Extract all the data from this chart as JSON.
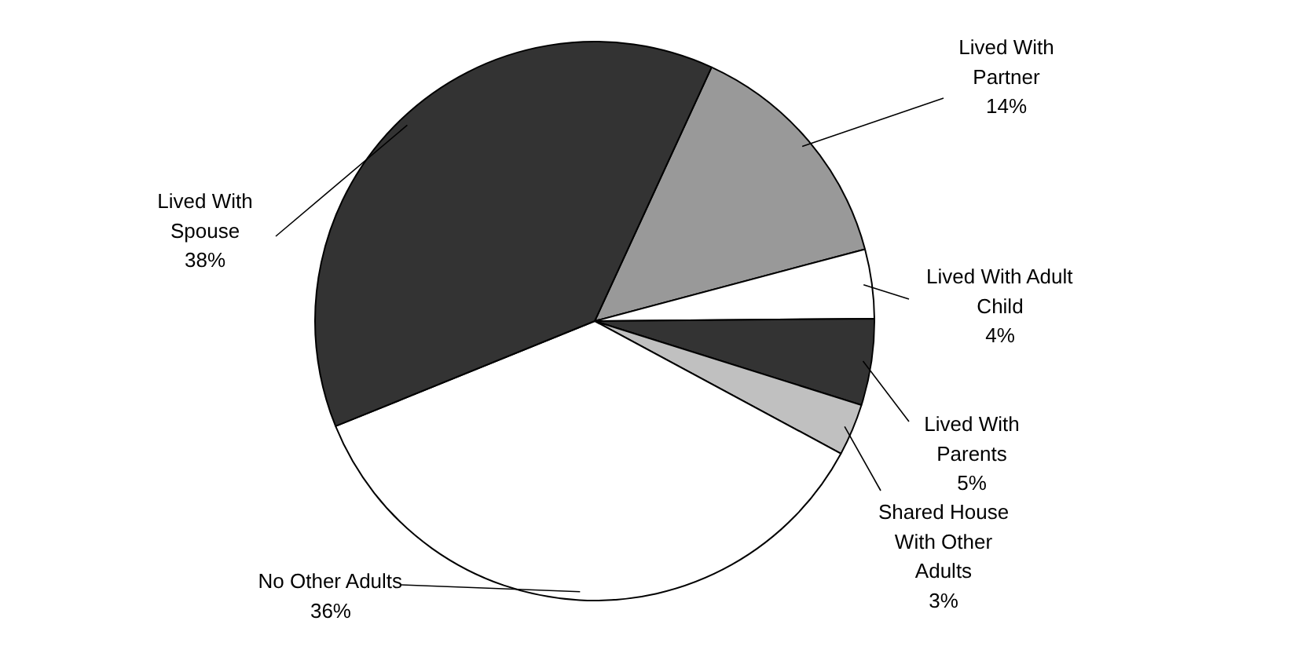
{
  "chart_data": {
    "type": "pie",
    "categories": [
      "Lived With Partner",
      "Lived With Adult Child",
      "Lived With Parents",
      "Shared House With Other Adults",
      "No Other Adults",
      "Lived With Spouse"
    ],
    "values": [
      14,
      4,
      5,
      3,
      36,
      38
    ],
    "value_labels": [
      "14%",
      "4%",
      "5%",
      "3%",
      "36%",
      "38%"
    ],
    "colors": [
      "#999999",
      "#ffffff",
      "#333333",
      "#c0c0c0",
      "#ffffff",
      "#333333"
    ]
  }
}
